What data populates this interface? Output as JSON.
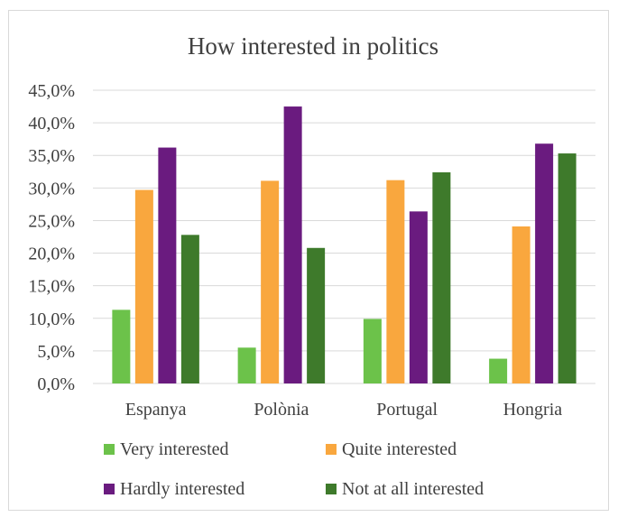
{
  "chart_data": {
    "type": "bar",
    "title": "How interested in politics",
    "categories": [
      "Espanya",
      "Polònia",
      "Portugal",
      "Hongria"
    ],
    "ylim": [
      0,
      45
    ],
    "yticks": [
      "0,0%",
      "5,0%",
      "10,0%",
      "15,0%",
      "20,0%",
      "25,0%",
      "30,0%",
      "35,0%",
      "40,0%",
      "45,0%"
    ],
    "grid": true,
    "legend_position": "bottom",
    "series": [
      {
        "name": "Very interested",
        "color": "#6cc24a",
        "values": [
          11.3,
          5.5,
          9.9,
          3.8
        ]
      },
      {
        "name": "Quite interested",
        "color": "#f9a73e",
        "values": [
          29.7,
          31.1,
          31.2,
          24.1
        ]
      },
      {
        "name": "Hardly interested",
        "color": "#6a1b7f",
        "values": [
          36.2,
          42.5,
          26.4,
          36.8
        ]
      },
      {
        "name": "Not at all interested",
        "color": "#3e7a2b",
        "values": [
          22.8,
          20.8,
          32.4,
          35.3
        ]
      }
    ]
  }
}
